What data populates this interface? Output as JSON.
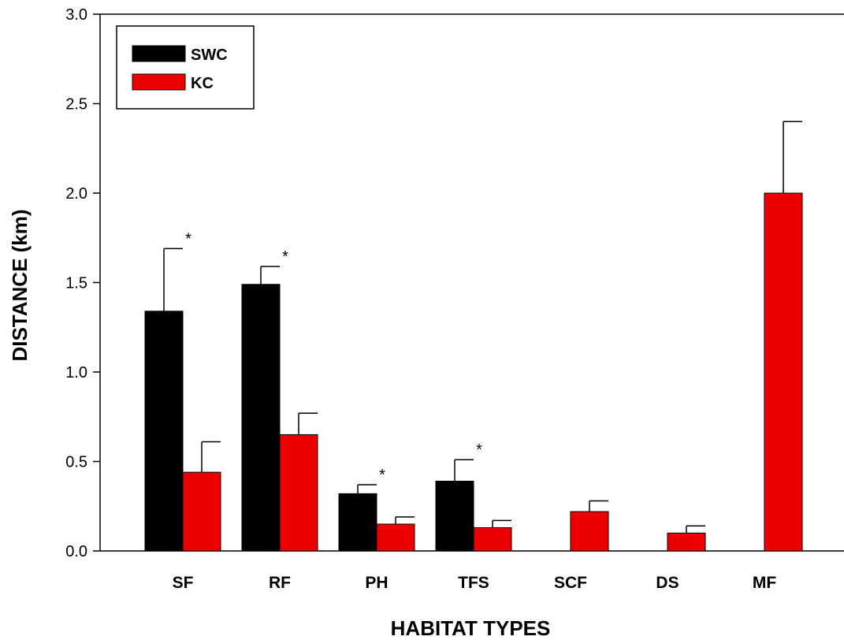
{
  "chart_data": {
    "type": "bar",
    "title": "",
    "xlabel": "HABITAT TYPES",
    "ylabel": "DISTANCE (km)",
    "ylim": [
      0,
      3.0
    ],
    "yticks": [
      "0.0",
      "0.5",
      "1.0",
      "1.5",
      "2.0",
      "2.5",
      "3.0"
    ],
    "categories": [
      "SF",
      "RF",
      "PH",
      "TFS",
      "SCF",
      "DS",
      "MF"
    ],
    "series": [
      {
        "name": "SWC",
        "color": "#000000",
        "values": [
          1.34,
          1.49,
          0.32,
          0.39,
          null,
          null,
          null
        ],
        "errors": [
          0.35,
          0.1,
          0.05,
          0.12,
          null,
          null,
          null
        ]
      },
      {
        "name": "KC",
        "color": "#ee0000",
        "values": [
          0.44,
          0.65,
          0.15,
          0.13,
          0.22,
          0.1,
          2.0
        ],
        "errors": [
          0.17,
          0.12,
          0.04,
          0.04,
          0.06,
          0.04,
          0.4
        ]
      }
    ],
    "significance_markers": [
      "*",
      "*",
      "*",
      "*",
      "",
      "",
      ""
    ],
    "legend_position": "top-left",
    "grid": false
  }
}
